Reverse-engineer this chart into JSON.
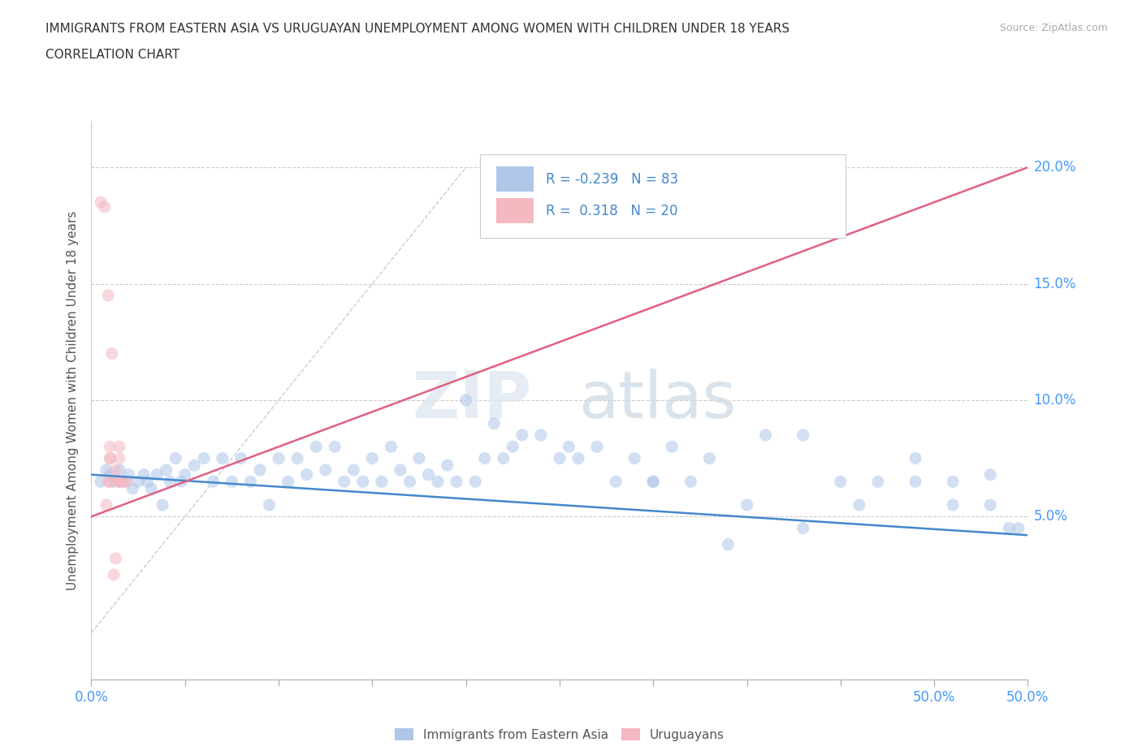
{
  "title_line1": "IMMIGRANTS FROM EASTERN ASIA VS URUGUAYAN UNEMPLOYMENT AMONG WOMEN WITH CHILDREN UNDER 18 YEARS",
  "title_line2": "CORRELATION CHART",
  "source": "Source: ZipAtlas.com",
  "ylabel": "Unemployment Among Women with Children Under 18 years",
  "xlim": [
    0.0,
    0.5
  ],
  "ylim": [
    -0.02,
    0.22
  ],
  "xtick_positions": [
    0.0,
    0.05,
    0.1,
    0.15,
    0.2,
    0.25,
    0.3,
    0.35,
    0.4,
    0.45,
    0.5
  ],
  "xtick_labeled": {
    "0.0": "0.0%",
    "0.5": "50.0%"
  },
  "yticks": [
    0.05,
    0.1,
    0.15,
    0.2
  ],
  "ytick_labels": [
    "5.0%",
    "10.0%",
    "15.0%",
    "20.0%"
  ],
  "watermark_zip": "ZIP",
  "watermark_atlas": "atlas",
  "legend_entries": [
    {
      "label": "Immigrants from Eastern Asia",
      "color": "#aec6e8",
      "R": "-0.239",
      "N": "83"
    },
    {
      "label": "Uruguayans",
      "color": "#f4b8c1",
      "R": "0.318",
      "N": "20"
    }
  ],
  "blue_scatter_x": [
    0.005,
    0.008,
    0.01,
    0.012,
    0.015,
    0.018,
    0.02,
    0.022,
    0.025,
    0.028,
    0.03,
    0.032,
    0.035,
    0.038,
    0.04,
    0.042,
    0.045,
    0.048,
    0.05,
    0.055,
    0.06,
    0.065,
    0.07,
    0.075,
    0.08,
    0.085,
    0.09,
    0.095,
    0.1,
    0.105,
    0.11,
    0.115,
    0.12,
    0.125,
    0.13,
    0.135,
    0.14,
    0.145,
    0.15,
    0.155,
    0.16,
    0.165,
    0.17,
    0.175,
    0.18,
    0.185,
    0.19,
    0.195,
    0.2,
    0.205,
    0.21,
    0.215,
    0.22,
    0.225,
    0.23,
    0.24,
    0.25,
    0.255,
    0.26,
    0.27,
    0.28,
    0.29,
    0.3,
    0.31,
    0.32,
    0.33,
    0.34,
    0.36,
    0.38,
    0.4,
    0.42,
    0.44,
    0.46,
    0.48,
    0.3,
    0.35,
    0.38,
    0.41,
    0.44,
    0.46,
    0.48,
    0.49,
    0.495
  ],
  "blue_scatter_y": [
    0.065,
    0.07,
    0.068,
    0.065,
    0.07,
    0.065,
    0.068,
    0.062,
    0.065,
    0.068,
    0.065,
    0.062,
    0.068,
    0.055,
    0.07,
    0.065,
    0.075,
    0.065,
    0.068,
    0.072,
    0.075,
    0.065,
    0.075,
    0.065,
    0.075,
    0.065,
    0.07,
    0.055,
    0.075,
    0.065,
    0.075,
    0.068,
    0.08,
    0.07,
    0.08,
    0.065,
    0.07,
    0.065,
    0.075,
    0.065,
    0.08,
    0.07,
    0.065,
    0.075,
    0.068,
    0.065,
    0.072,
    0.065,
    0.1,
    0.065,
    0.075,
    0.09,
    0.075,
    0.08,
    0.085,
    0.085,
    0.075,
    0.08,
    0.075,
    0.08,
    0.065,
    0.075,
    0.065,
    0.08,
    0.065,
    0.075,
    0.038,
    0.085,
    0.085,
    0.065,
    0.065,
    0.075,
    0.065,
    0.055,
    0.065,
    0.055,
    0.045,
    0.055,
    0.065,
    0.055,
    0.068,
    0.045,
    0.045
  ],
  "pink_scatter_x": [
    0.005,
    0.007,
    0.009,
    0.011,
    0.013,
    0.015,
    0.017,
    0.019,
    0.01,
    0.01,
    0.01,
    0.01,
    0.015,
    0.015,
    0.015,
    0.015,
    0.008,
    0.009,
    0.012,
    0.013
  ],
  "pink_scatter_y": [
    0.185,
    0.183,
    0.145,
    0.12,
    0.07,
    0.065,
    0.065,
    0.065,
    0.075,
    0.065,
    0.075,
    0.08,
    0.065,
    0.08,
    0.075,
    0.065,
    0.055,
    0.065,
    0.025,
    0.032
  ],
  "blue_trend_x": [
    0.0,
    0.5
  ],
  "blue_trend_y": [
    0.068,
    0.042
  ],
  "pink_trend_x": [
    0.0,
    0.5
  ],
  "pink_trend_y": [
    0.05,
    0.2
  ],
  "diag_line_x": [
    0.0,
    0.2
  ],
  "diag_line_y": [
    0.0,
    0.2
  ],
  "bg_color": "#ffffff",
  "scatter_alpha": 0.55,
  "scatter_size": 120
}
